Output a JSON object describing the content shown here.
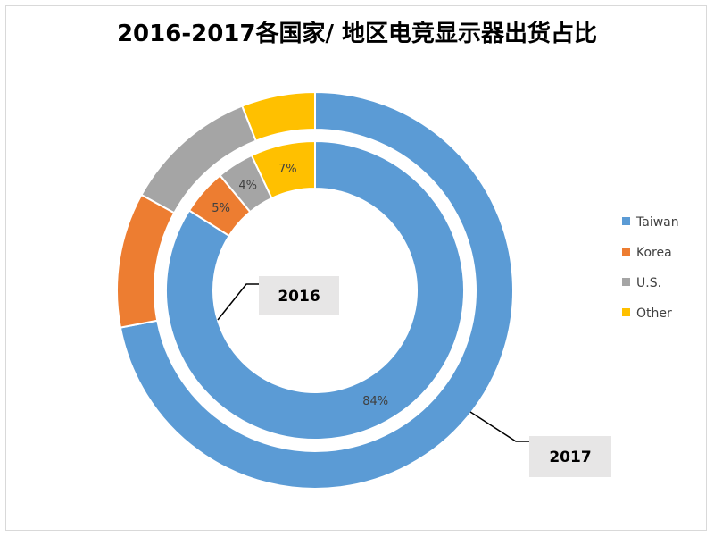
{
  "chart_data": {
    "type": "pie",
    "subtype": "doughnut",
    "title": "2016-2017各国家/ 地区电竞显示器出货占比",
    "categories": [
      "Taiwan",
      "Korea",
      "U.S.",
      "Other"
    ],
    "colors": [
      "#5B9BD5",
      "#ED7D31",
      "#A5A5A5",
      "#FFC000"
    ],
    "series": [
      {
        "name": "2016",
        "ring": "inner",
        "values": [
          84,
          5,
          4,
          7
        ],
        "labels": [
          "84%",
          "5%",
          "4%",
          "7%"
        ]
      },
      {
        "name": "2017",
        "ring": "outer",
        "values": [
          72,
          11,
          11,
          6
        ]
      }
    ],
    "legend": {
      "position": "right"
    }
  }
}
